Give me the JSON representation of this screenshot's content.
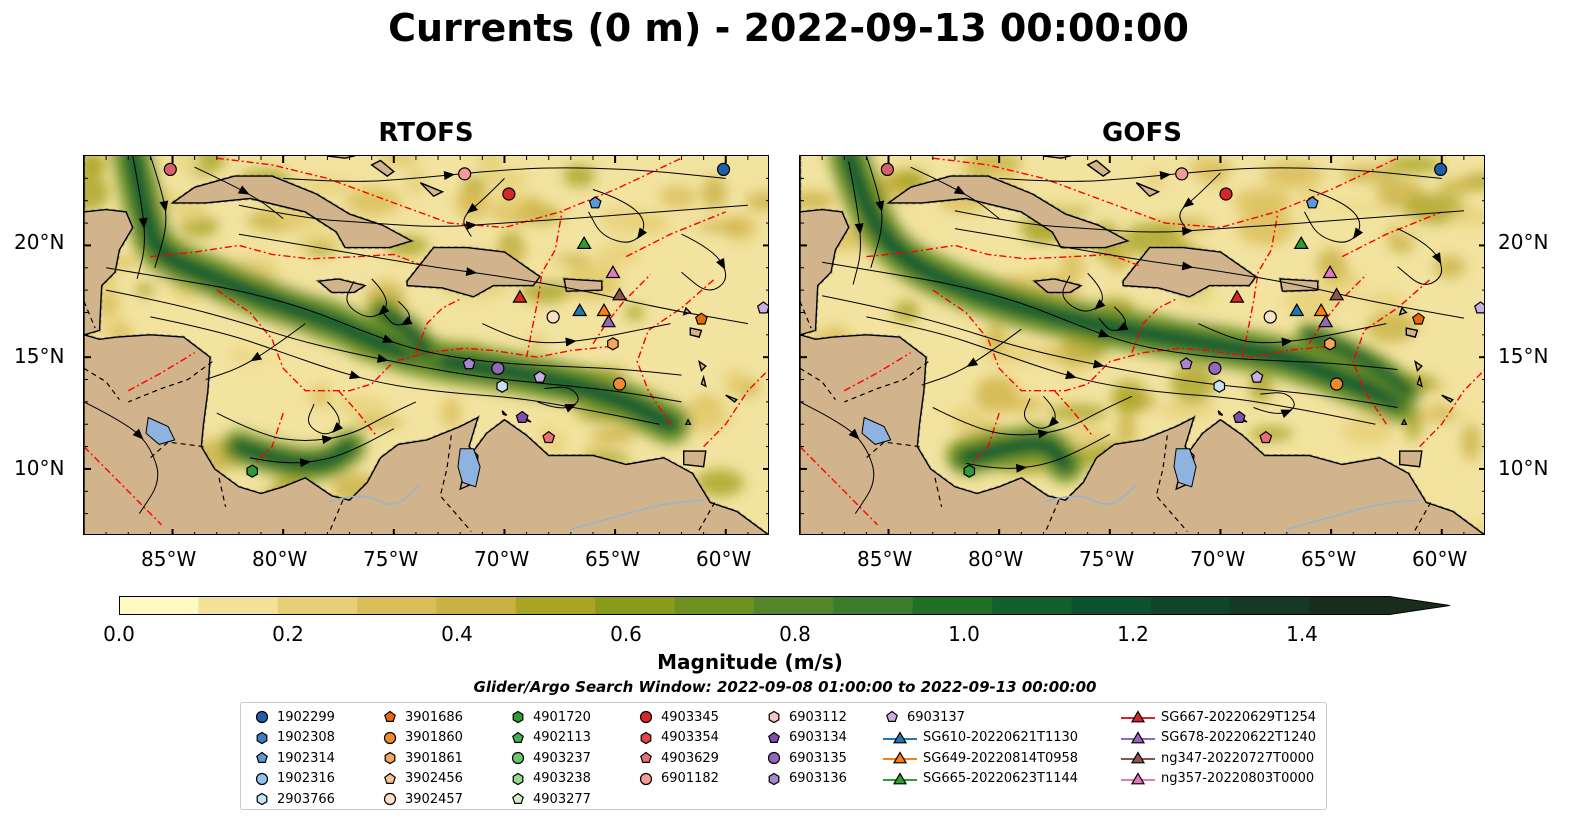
{
  "title": "Currents (0 m) - 2022-09-13 00:00:00",
  "panels": [
    {
      "id": "rtofs",
      "title": "RTOFS"
    },
    {
      "id": "gofs",
      "title": "GOFS"
    }
  ],
  "map_extent": {
    "lon": [
      -89,
      -58
    ],
    "lat": [
      7,
      24
    ]
  },
  "lat_ticks": [
    "20°N",
    "15°N",
    "10°N"
  ],
  "lon_ticks": [
    "85°W",
    "80°W",
    "75°W",
    "70°W",
    "65°W",
    "60°W"
  ],
  "colors": {
    "land": "#d2b48c",
    "lake": "#8fb3e0",
    "eez": "#ff0000",
    "low_speed": "#fff7bc",
    "high_speed": "#0b5d2c"
  },
  "colorbar": {
    "label": "Magnitude (m/s)",
    "ticks": [
      "0.0",
      "0.2",
      "0.4",
      "0.6",
      "0.8",
      "1.0",
      "1.2",
      "1.4"
    ],
    "range": [
      0,
      1.6
    ],
    "extend": "max",
    "colors": [
      "#fff9c4",
      "#f3e39a",
      "#e6cf76",
      "#d9bd58",
      "#c9b243",
      "#a9a424",
      "#8a9a19",
      "#6e9021",
      "#55852b",
      "#3b7b2c",
      "#227028",
      "#135f2e",
      "#0d5230",
      "#10452b",
      "#163826",
      "#1a2c1e"
    ]
  },
  "search_window": "Glider/Argo Search Window: 2022-09-08 01:00:00 to 2022-09-13 00:00:00",
  "legend": {
    "columns": [
      [
        {
          "label": "1902299",
          "marker": "circle",
          "color": "#1f5fa8"
        },
        {
          "label": "1902308",
          "marker": "hexagon",
          "color": "#3a7fc0"
        },
        {
          "label": "1902314",
          "marker": "pentagon",
          "color": "#5b9bd5"
        },
        {
          "label": "1902316",
          "marker": "circle",
          "color": "#8fc3eb"
        },
        {
          "label": "2903766",
          "marker": "hexagon",
          "color": "#c6e2f7"
        }
      ],
      [
        {
          "label": "3901686",
          "marker": "pentagon",
          "color": "#e66a0a"
        },
        {
          "label": "3901860",
          "marker": "circle",
          "color": "#f08a2c"
        },
        {
          "label": "3901861",
          "marker": "hexagon",
          "color": "#f6a65a"
        },
        {
          "label": "3902456",
          "marker": "pentagon",
          "color": "#f8c28e"
        },
        {
          "label": "3902457",
          "marker": "circle",
          "color": "#fde0c5"
        }
      ],
      [
        {
          "label": "4901720",
          "marker": "hexagon",
          "color": "#2e9a3a"
        },
        {
          "label": "4902113",
          "marker": "pentagon",
          "color": "#45b04d"
        },
        {
          "label": "4903237",
          "marker": "circle",
          "color": "#6cc46a"
        },
        {
          "label": "4903238",
          "marker": "hexagon",
          "color": "#98d891"
        },
        {
          "label": "4903277",
          "marker": "pentagon",
          "color": "#d0efc6"
        }
      ],
      [
        {
          "label": "4903345",
          "marker": "circle",
          "color": "#d62728"
        },
        {
          "label": "4903354",
          "marker": "hexagon",
          "color": "#e0454a"
        },
        {
          "label": "4903629",
          "marker": "pentagon",
          "color": "#ea6f73"
        },
        {
          "label": "6901182",
          "marker": "circle",
          "color": "#f49a98"
        }
      ],
      [
        {
          "label": "6903112",
          "marker": "hexagon",
          "color": "#f9c6c5"
        },
        {
          "label": "6903134",
          "marker": "pentagon",
          "color": "#7c4fa8"
        },
        {
          "label": "6903135",
          "marker": "circle",
          "color": "#9467bd"
        },
        {
          "label": "6903136",
          "marker": "hexagon",
          "color": "#a886cf"
        }
      ],
      [
        {
          "label": "6903137",
          "marker": "pentagon",
          "color": "#c7b0e4"
        },
        {
          "label": "SG610-20220621T1130",
          "marker": "triangle",
          "color": "#1f77b4",
          "line": true
        },
        {
          "label": "SG649-20220814T0958",
          "marker": "triangle",
          "color": "#ff7f0e",
          "line": true
        },
        {
          "label": "SG665-20220623T1144",
          "marker": "triangle",
          "color": "#2ca02c",
          "line": true
        }
      ],
      [
        {
          "label": "SG667-20220629T1254",
          "marker": "triangle",
          "color": "#d62728",
          "line": true
        },
        {
          "label": "SG678-20220622T1240",
          "marker": "triangle",
          "color": "#9467bd",
          "line": true
        },
        {
          "label": "ng347-20220727T0000",
          "marker": "triangle",
          "color": "#8c564b",
          "line": true
        },
        {
          "label": "ng357-20220803T0000",
          "marker": "triangle",
          "color": "#e377c2",
          "line": true
        }
      ]
    ]
  },
  "observations": [
    {
      "lon": -85.1,
      "lat": 23.4,
      "marker": "circle",
      "color": "#d6616b"
    },
    {
      "lon": -60.1,
      "lat": 23.4,
      "marker": "circle",
      "color": "#1f5fa8"
    },
    {
      "lon": -71.8,
      "lat": 23.2,
      "marker": "circle",
      "color": "#f49a98"
    },
    {
      "lon": -69.8,
      "lat": 22.3,
      "marker": "circle",
      "color": "#d62728"
    },
    {
      "lon": -65.9,
      "lat": 21.9,
      "marker": "pentagon",
      "color": "#5b9bd5"
    },
    {
      "lon": -66.4,
      "lat": 20.1,
      "marker": "triangle",
      "color": "#2ca02c"
    },
    {
      "lon": -65.1,
      "lat": 18.8,
      "marker": "triangle",
      "color": "#e377c2"
    },
    {
      "lon": -64.8,
      "lat": 17.8,
      "marker": "triangle",
      "color": "#8c564b"
    },
    {
      "lon": -69.3,
      "lat": 17.7,
      "marker": "triangle",
      "color": "#d62728"
    },
    {
      "lon": -66.6,
      "lat": 17.1,
      "marker": "triangle",
      "color": "#1f77b4"
    },
    {
      "lon": -65.5,
      "lat": 17.1,
      "marker": "triangle",
      "color": "#ff7f0e"
    },
    {
      "lon": -65.3,
      "lat": 16.6,
      "marker": "triangle",
      "color": "#9467bd"
    },
    {
      "lon": -67.8,
      "lat": 16.8,
      "marker": "circle",
      "color": "#fde0c5"
    },
    {
      "lon": -58.3,
      "lat": 17.2,
      "marker": "pentagon",
      "color": "#c7b0e4"
    },
    {
      "lon": -61.1,
      "lat": 16.7,
      "marker": "pentagon",
      "color": "#e66a0a"
    },
    {
      "lon": -65.1,
      "lat": 15.6,
      "marker": "hexagon",
      "color": "#f6a65a"
    },
    {
      "lon": -71.6,
      "lat": 14.7,
      "marker": "pentagon",
      "color": "#a886cf"
    },
    {
      "lon": -70.3,
      "lat": 14.5,
      "marker": "circle",
      "color": "#9467bd"
    },
    {
      "lon": -68.4,
      "lat": 14.1,
      "marker": "pentagon",
      "color": "#c7b0e4"
    },
    {
      "lon": -70.1,
      "lat": 13.7,
      "marker": "hexagon",
      "color": "#c6e2f7"
    },
    {
      "lon": -64.8,
      "lat": 13.8,
      "marker": "circle",
      "color": "#f08a2c"
    },
    {
      "lon": -69.2,
      "lat": 12.3,
      "marker": "pentagon",
      "color": "#7c4fa8"
    },
    {
      "lon": -68.0,
      "lat": 11.4,
      "marker": "pentagon",
      "color": "#ea6f73"
    },
    {
      "lon": -81.4,
      "lat": 9.9,
      "marker": "hexagon",
      "color": "#2e9a3a"
    }
  ]
}
